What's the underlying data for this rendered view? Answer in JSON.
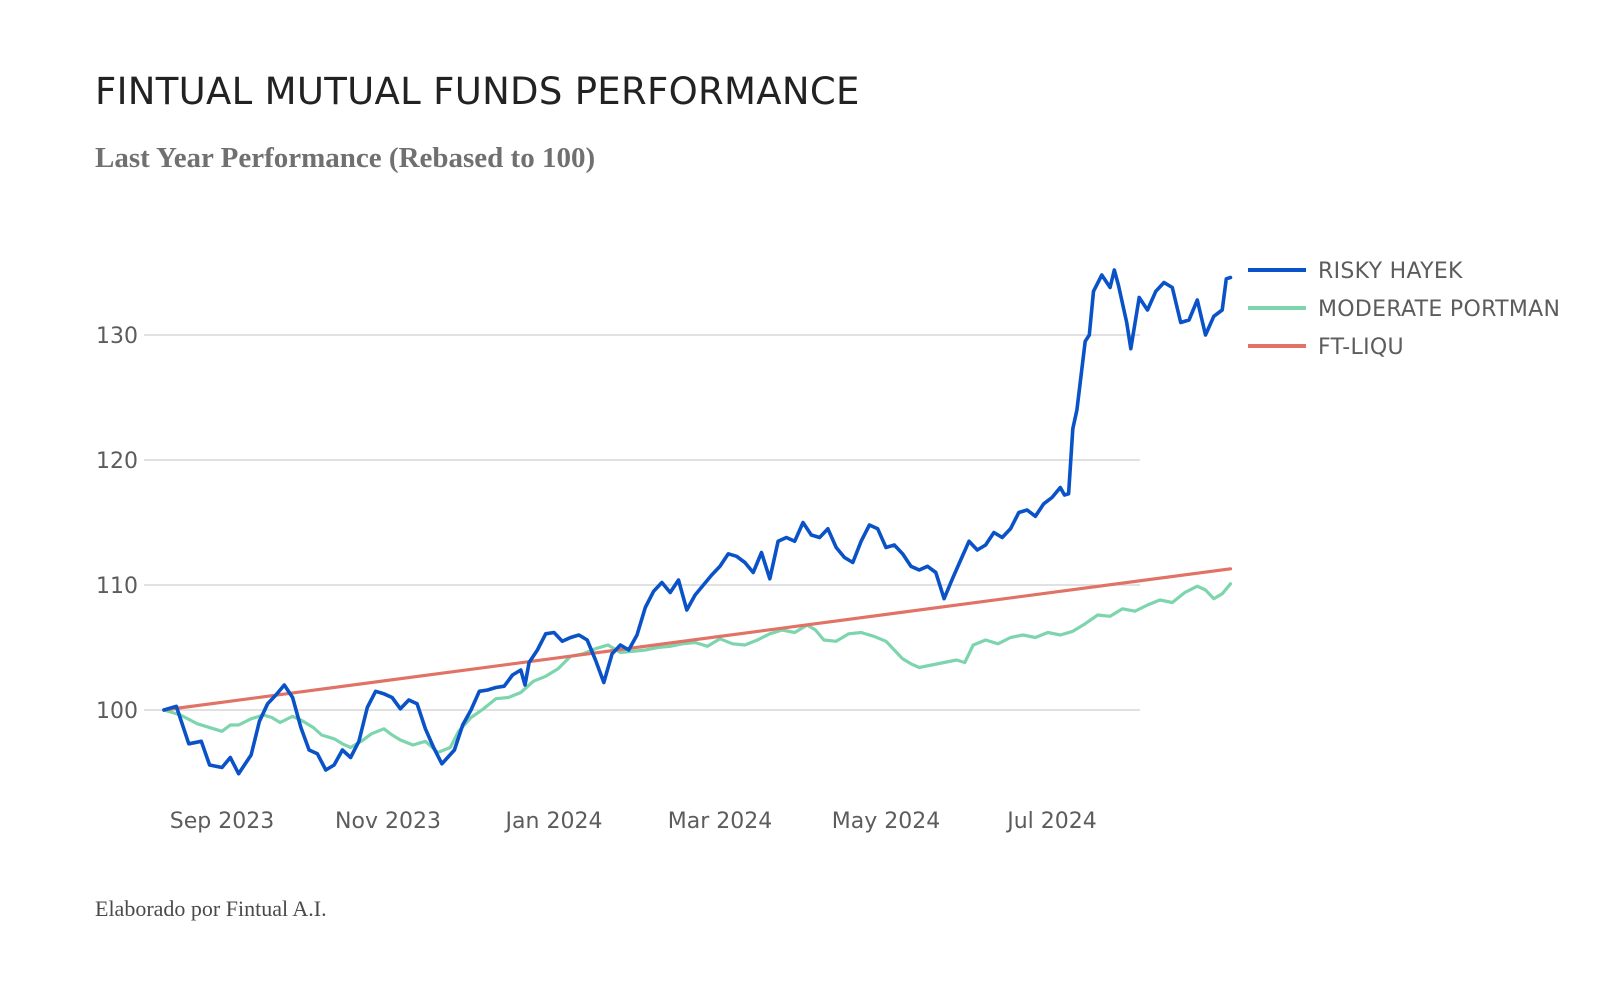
{
  "header": {
    "title": "FINTUAL MUTUAL FUNDS PERFORMANCE",
    "subtitle": "Last Year Performance (Rebased to 100)"
  },
  "footer": {
    "credit": "Elaborado por Fintual A.I."
  },
  "chart_data": {
    "type": "line",
    "title": "FINTUAL MUTUAL FUNDS PERFORMANCE",
    "subtitle": "Last Year Performance (Rebased to 100)",
    "xlabel": "",
    "ylabel": "",
    "x_axis": {
      "unit": "months since 2023-08-01",
      "range": [
        0.3,
        12.5
      ],
      "ticks": [
        {
          "x": 1.0,
          "label": "Sep 2023"
        },
        {
          "x": 3.0,
          "label": "Nov 2023"
        },
        {
          "x": 5.0,
          "label": "Jan 2024"
        },
        {
          "x": 7.0,
          "label": "Mar 2024"
        },
        {
          "x": 9.0,
          "label": "May 2024"
        },
        {
          "x": 11.0,
          "label": "Jul 2024"
        }
      ]
    },
    "y_axis": {
      "range": [
        93.5,
        137
      ],
      "ticks": [
        100,
        110,
        120,
        130
      ],
      "grid": true
    },
    "legend_position": "top-right",
    "series": [
      {
        "name": "RISKY HAYEK",
        "color": "#0a52c7",
        "points": [
          [
            0.3,
            100.0
          ],
          [
            0.45,
            100.3
          ],
          [
            0.6,
            97.3
          ],
          [
            0.75,
            97.5
          ],
          [
            0.85,
            95.6
          ],
          [
            1.0,
            95.4
          ],
          [
            1.1,
            96.2
          ],
          [
            1.2,
            94.9
          ],
          [
            1.35,
            96.4
          ],
          [
            1.45,
            99.1
          ],
          [
            1.55,
            100.5
          ],
          [
            1.65,
            101.2
          ],
          [
            1.75,
            102.0
          ],
          [
            1.85,
            101.0
          ],
          [
            1.95,
            98.6
          ],
          [
            2.05,
            96.8
          ],
          [
            2.15,
            96.5
          ],
          [
            2.25,
            95.2
          ],
          [
            2.35,
            95.6
          ],
          [
            2.45,
            96.8
          ],
          [
            2.55,
            96.2
          ],
          [
            2.65,
            97.5
          ],
          [
            2.75,
            100.2
          ],
          [
            2.85,
            101.5
          ],
          [
            2.95,
            101.3
          ],
          [
            3.05,
            101.0
          ],
          [
            3.15,
            100.1
          ],
          [
            3.25,
            100.8
          ],
          [
            3.35,
            100.5
          ],
          [
            3.45,
            98.5
          ],
          [
            3.55,
            97.0
          ],
          [
            3.65,
            95.7
          ],
          [
            3.8,
            96.8
          ],
          [
            3.9,
            98.8
          ],
          [
            4.0,
            100.0
          ],
          [
            4.1,
            101.5
          ],
          [
            4.2,
            101.6
          ],
          [
            4.3,
            101.8
          ],
          [
            4.4,
            101.9
          ],
          [
            4.5,
            102.8
          ],
          [
            4.6,
            103.2
          ],
          [
            4.65,
            102.0
          ],
          [
            4.7,
            103.8
          ],
          [
            4.8,
            104.8
          ],
          [
            4.9,
            106.1
          ],
          [
            5.0,
            106.2
          ],
          [
            5.1,
            105.5
          ],
          [
            5.2,
            105.8
          ],
          [
            5.3,
            106.0
          ],
          [
            5.4,
            105.6
          ],
          [
            5.5,
            104.0
          ],
          [
            5.6,
            102.2
          ],
          [
            5.7,
            104.5
          ],
          [
            5.8,
            105.2
          ],
          [
            5.9,
            104.8
          ],
          [
            6.0,
            106.0
          ],
          [
            6.1,
            108.2
          ],
          [
            6.2,
            109.5
          ],
          [
            6.3,
            110.2
          ],
          [
            6.4,
            109.4
          ],
          [
            6.5,
            110.4
          ],
          [
            6.6,
            108.0
          ],
          [
            6.7,
            109.2
          ],
          [
            6.8,
            110.0
          ],
          [
            6.9,
            110.8
          ],
          [
            7.0,
            111.5
          ],
          [
            7.1,
            112.5
          ],
          [
            7.2,
            112.3
          ],
          [
            7.3,
            111.8
          ],
          [
            7.4,
            111.0
          ],
          [
            7.5,
            112.6
          ],
          [
            7.6,
            110.5
          ],
          [
            7.7,
            113.5
          ],
          [
            7.8,
            113.8
          ],
          [
            7.9,
            113.5
          ],
          [
            8.0,
            115.0
          ],
          [
            8.1,
            114.0
          ],
          [
            8.2,
            113.8
          ],
          [
            8.3,
            114.5
          ],
          [
            8.4,
            113.0
          ],
          [
            8.5,
            112.2
          ],
          [
            8.6,
            111.8
          ],
          [
            8.7,
            113.5
          ],
          [
            8.8,
            114.8
          ],
          [
            8.9,
            114.5
          ],
          [
            9.0,
            113.0
          ],
          [
            9.1,
            113.2
          ],
          [
            9.2,
            112.5
          ],
          [
            9.3,
            111.5
          ],
          [
            9.4,
            111.2
          ],
          [
            9.5,
            111.5
          ],
          [
            9.6,
            111.0
          ],
          [
            9.7,
            108.9
          ],
          [
            9.8,
            110.5
          ],
          [
            9.9,
            112.0
          ],
          [
            10.0,
            113.5
          ],
          [
            10.1,
            112.8
          ],
          [
            10.2,
            113.2
          ],
          [
            10.3,
            114.2
          ],
          [
            10.4,
            113.8
          ],
          [
            10.5,
            114.5
          ],
          [
            10.6,
            115.8
          ],
          [
            10.7,
            116.0
          ],
          [
            10.8,
            115.5
          ],
          [
            10.9,
            116.5
          ],
          [
            11.0,
            117.0
          ],
          [
            11.1,
            117.8
          ],
          [
            11.15,
            117.2
          ],
          [
            11.2,
            117.3
          ],
          [
            11.25,
            122.5
          ],
          [
            11.3,
            124.0
          ],
          [
            11.4,
            129.5
          ],
          [
            11.45,
            130.0
          ],
          [
            11.5,
            133.5
          ],
          [
            11.6,
            134.8
          ],
          [
            11.7,
            133.8
          ],
          [
            11.75,
            135.2
          ],
          [
            11.8,
            134.0
          ],
          [
            11.9,
            131.0
          ],
          [
            11.95,
            128.9
          ],
          [
            12.05,
            133.0
          ],
          [
            12.15,
            132.0
          ],
          [
            12.25,
            133.5
          ],
          [
            12.35,
            134.2
          ],
          [
            12.45,
            133.8
          ],
          [
            12.55,
            131.0
          ],
          [
            12.65,
            131.2
          ],
          [
            12.75,
            132.8
          ],
          [
            12.85,
            130.0
          ],
          [
            12.95,
            131.5
          ],
          [
            13.05,
            132.0
          ],
          [
            13.1,
            134.5
          ],
          [
            13.15,
            134.6
          ]
        ]
      },
      {
        "name": "MODERATE PORTMAN",
        "color": "#7dd5ad",
        "points": [
          [
            0.3,
            100.0
          ],
          [
            0.5,
            99.6
          ],
          [
            0.7,
            98.9
          ],
          [
            0.9,
            98.5
          ],
          [
            1.0,
            98.3
          ],
          [
            1.1,
            98.8
          ],
          [
            1.2,
            98.8
          ],
          [
            1.35,
            99.3
          ],
          [
            1.5,
            99.6
          ],
          [
            1.6,
            99.4
          ],
          [
            1.7,
            99.0
          ],
          [
            1.85,
            99.5
          ],
          [
            1.95,
            99.2
          ],
          [
            2.1,
            98.6
          ],
          [
            2.2,
            98.0
          ],
          [
            2.35,
            97.7
          ],
          [
            2.45,
            97.3
          ],
          [
            2.55,
            97.0
          ],
          [
            2.7,
            97.6
          ],
          [
            2.8,
            98.1
          ],
          [
            2.95,
            98.5
          ],
          [
            3.05,
            98.0
          ],
          [
            3.15,
            97.6
          ],
          [
            3.3,
            97.2
          ],
          [
            3.45,
            97.5
          ],
          [
            3.6,
            96.6
          ],
          [
            3.75,
            97.0
          ],
          [
            3.85,
            98.3
          ],
          [
            4.0,
            99.4
          ],
          [
            4.15,
            100.1
          ],
          [
            4.3,
            100.9
          ],
          [
            4.45,
            101.0
          ],
          [
            4.6,
            101.4
          ],
          [
            4.75,
            102.3
          ],
          [
            4.9,
            102.7
          ],
          [
            5.05,
            103.3
          ],
          [
            5.2,
            104.3
          ],
          [
            5.35,
            104.5
          ],
          [
            5.5,
            104.9
          ],
          [
            5.65,
            105.2
          ],
          [
            5.8,
            104.6
          ],
          [
            5.95,
            104.7
          ],
          [
            6.1,
            104.8
          ],
          [
            6.25,
            105.0
          ],
          [
            6.4,
            105.1
          ],
          [
            6.55,
            105.3
          ],
          [
            6.7,
            105.4
          ],
          [
            6.85,
            105.1
          ],
          [
            7.0,
            105.7
          ],
          [
            7.15,
            105.3
          ],
          [
            7.3,
            105.2
          ],
          [
            7.45,
            105.6
          ],
          [
            7.6,
            106.1
          ],
          [
            7.75,
            106.4
          ],
          [
            7.9,
            106.2
          ],
          [
            8.05,
            106.8
          ],
          [
            8.15,
            106.4
          ],
          [
            8.25,
            105.6
          ],
          [
            8.4,
            105.5
          ],
          [
            8.55,
            106.1
          ],
          [
            8.7,
            106.2
          ],
          [
            8.85,
            105.9
          ],
          [
            9.0,
            105.5
          ],
          [
            9.1,
            104.8
          ],
          [
            9.2,
            104.1
          ],
          [
            9.3,
            103.7
          ],
          [
            9.4,
            103.4
          ],
          [
            9.55,
            103.6
          ],
          [
            9.7,
            103.8
          ],
          [
            9.85,
            104.0
          ],
          [
            9.95,
            103.8
          ],
          [
            10.05,
            105.2
          ],
          [
            10.2,
            105.6
          ],
          [
            10.35,
            105.3
          ],
          [
            10.5,
            105.8
          ],
          [
            10.65,
            106.0
          ],
          [
            10.8,
            105.8
          ],
          [
            10.95,
            106.2
          ],
          [
            11.1,
            106.0
          ],
          [
            11.25,
            106.3
          ],
          [
            11.4,
            106.9
          ],
          [
            11.55,
            107.6
          ],
          [
            11.7,
            107.5
          ],
          [
            11.85,
            108.1
          ],
          [
            12.0,
            107.9
          ],
          [
            12.15,
            108.4
          ],
          [
            12.3,
            108.8
          ],
          [
            12.45,
            108.6
          ],
          [
            12.6,
            109.4
          ],
          [
            12.75,
            109.9
          ],
          [
            12.85,
            109.6
          ],
          [
            12.95,
            108.9
          ],
          [
            13.05,
            109.3
          ],
          [
            13.15,
            110.1
          ]
        ]
      },
      {
        "name": "FT-LIQU",
        "color": "#e07266",
        "points": [
          [
            0.3,
            100.0
          ],
          [
            13.15,
            111.3
          ]
        ]
      }
    ]
  }
}
